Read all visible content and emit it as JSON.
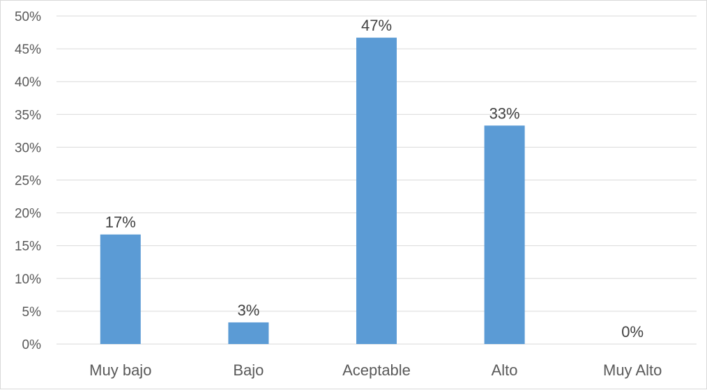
{
  "chart_data": {
    "type": "bar",
    "title": "",
    "xlabel": "",
    "ylabel": "",
    "categories": [
      "Muy bajo",
      "Bajo",
      "Aceptable",
      "Alto",
      "Muy Alto"
    ],
    "values": [
      16.7,
      3.3,
      46.7,
      33.3,
      0
    ],
    "data_labels": [
      "17%",
      "3%",
      "47%",
      "33%",
      "0%"
    ],
    "y_ticks": [
      "0%",
      "5%",
      "10%",
      "15%",
      "20%",
      "25%",
      "30%",
      "35%",
      "40%",
      "45%",
      "50%"
    ],
    "y_tick_values": [
      0,
      5,
      10,
      15,
      20,
      25,
      30,
      35,
      40,
      45,
      50
    ],
    "ylim": [
      0,
      50
    ],
    "grid": true,
    "legend": "none",
    "bar_color": "#5b9bd5"
  }
}
